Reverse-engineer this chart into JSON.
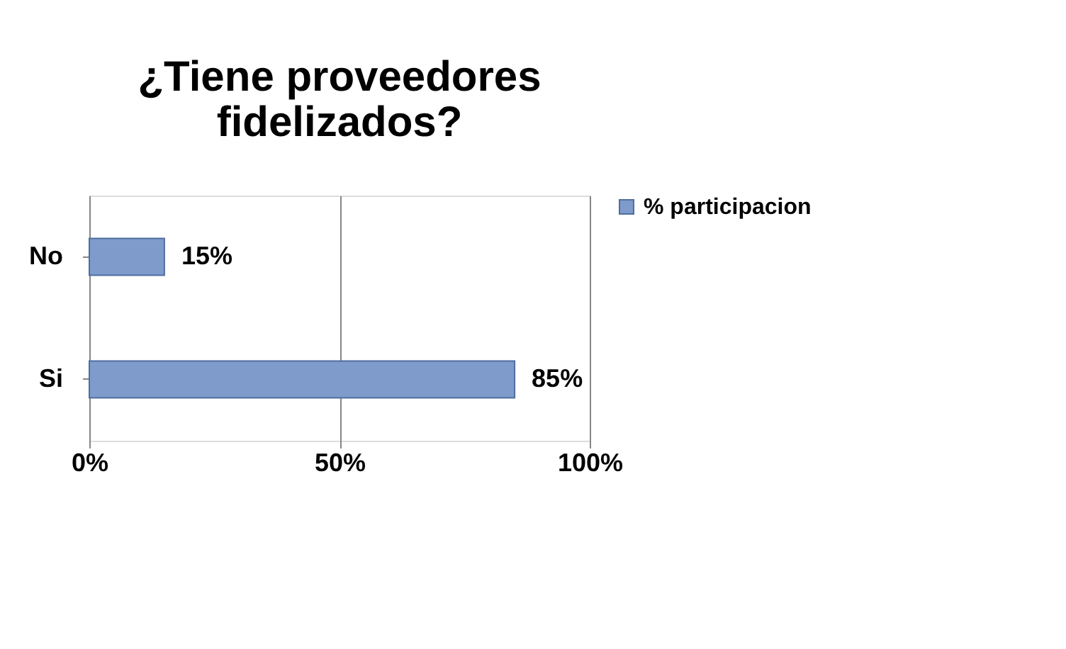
{
  "chart_data": {
    "type": "bar",
    "orientation": "horizontal",
    "title": "¿Tiene proveedores fidelizados?",
    "categories": [
      "No",
      "Si"
    ],
    "series": [
      {
        "name": "% participacion",
        "color": "#7f9bcb",
        "values": [
          15,
          85
        ],
        "value_labels": [
          "15%",
          "85%"
        ]
      }
    ],
    "xlim": [
      0,
      100
    ],
    "xticks": [
      {
        "value": 0,
        "label": "0%"
      },
      {
        "value": 50,
        "label": "50%"
      },
      {
        "value": 100,
        "label": "100%"
      }
    ],
    "grid": "x",
    "legend": "right"
  }
}
